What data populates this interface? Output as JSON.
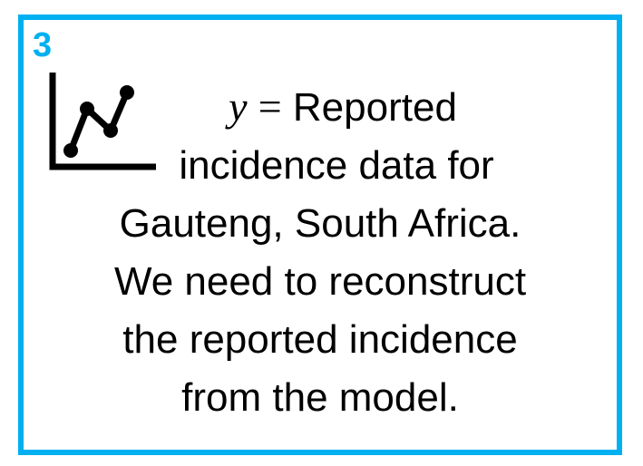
{
  "panel": {
    "step_number": "3",
    "border_color": "#00b0f0",
    "icon": "line-chart-icon",
    "equation": {
      "variable": "y",
      "operator": "="
    },
    "lines": [
      "Reported",
      "incidence data for",
      "Gauteng, South Africa.",
      "We need to reconstruct",
      "the reported incidence",
      "from the model."
    ]
  }
}
